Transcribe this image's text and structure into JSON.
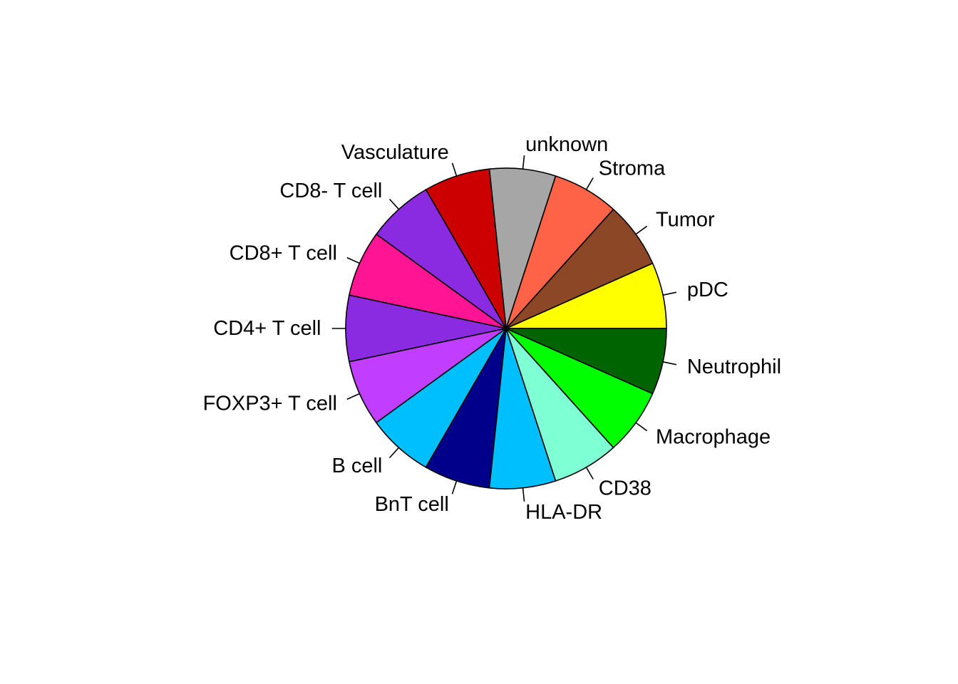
{
  "chart_data": {
    "type": "pie",
    "start_angle_deg": 0,
    "direction": "counterclockwise",
    "slices": [
      {
        "label": "pDC",
        "value": 1,
        "color": "#FFFF00"
      },
      {
        "label": "Tumor",
        "value": 1,
        "color": "#8B4726"
      },
      {
        "label": "Stroma",
        "value": 1,
        "color": "#FF6347"
      },
      {
        "label": "unknown",
        "value": 1,
        "color": "#A6A6A6"
      },
      {
        "label": "Vasculature",
        "value": 1,
        "color": "#CD0000"
      },
      {
        "label": "CD8- T cell",
        "value": 1,
        "color": "#8A2BE2"
      },
      {
        "label": "CD8+ T cell",
        "value": 1,
        "color": "#FF1493"
      },
      {
        "label": "CD4+ T cell",
        "value": 1,
        "color": "#8A2BE2"
      },
      {
        "label": "FOXP3+ T cell",
        "value": 1,
        "color": "#BF3EFF"
      },
      {
        "label": "B cell",
        "value": 1,
        "color": "#00BFFF"
      },
      {
        "label": "BnT cell",
        "value": 1,
        "color": "#00008B"
      },
      {
        "label": "HLA-DR",
        "value": 1,
        "color": "#00BFFF"
      },
      {
        "label": "CD38",
        "value": 1,
        "color": "#7FFFD4"
      },
      {
        "label": "Macrophage",
        "value": 1,
        "color": "#00FF00"
      },
      {
        "label": "Neutrophil",
        "value": 1,
        "color": "#006400"
      }
    ]
  }
}
